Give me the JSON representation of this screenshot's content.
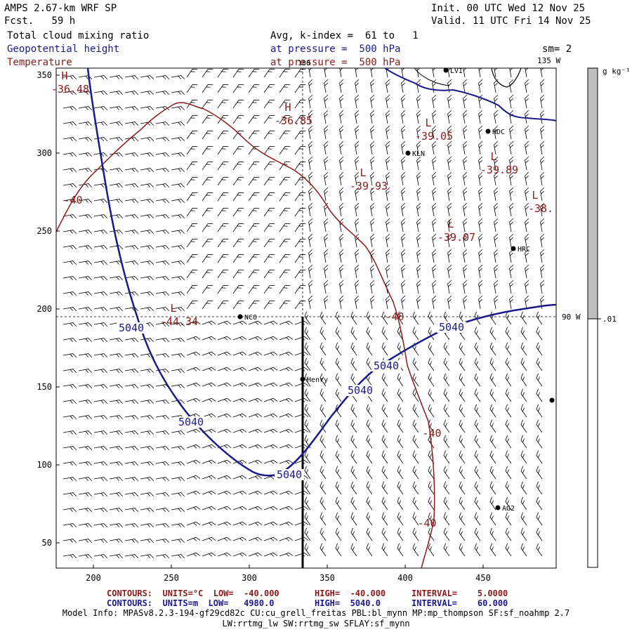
{
  "header": {
    "model": "AMPS 2.67-km WRF SP",
    "fcst_label": "Fcst.",
    "fcst_hours": "59 h",
    "init": "Init. 00 UTC Wed 12 Nov 25",
    "valid": "Valid. 11 UTC Fri 14 Nov 25",
    "field1": "Total cloud mixing ratio",
    "field2": "Geopotential height",
    "field3": "Temperature",
    "avg": "Avg, k-index =  61 to   1",
    "pressure1": "at pressure =  500 hPa",
    "pressure2": "at pressure =  500 hPa",
    "sm": "sm= 2"
  },
  "map": {
    "x_ticks": [
      "200",
      "250",
      "300",
      "350",
      "400",
      "450"
    ],
    "y_ticks": [
      "350",
      "300",
      "250",
      "200",
      "150",
      "100",
      "50"
    ],
    "meridian_180": "180",
    "meridian_135w": "135 W",
    "meridian_90w": "90 W",
    "stations": [
      {
        "name": "NCO"
      },
      {
        "name": "KLN"
      },
      {
        "name": "HDC"
      },
      {
        "name": "HRC"
      },
      {
        "name": "Henry"
      },
      {
        "name": "AG2"
      },
      {
        "name": "LVI"
      }
    ],
    "highs_lows": [
      {
        "symbol": "H",
        "value": "-36.48"
      },
      {
        "symbol": "H",
        "value": "-36.85"
      },
      {
        "symbol": "L",
        "value": "-39.05"
      },
      {
        "symbol": "L",
        "value": "-39.93"
      },
      {
        "symbol": "L",
        "value": "-39.89"
      },
      {
        "symbol": "L",
        "value": "-38."
      },
      {
        "symbol": "L",
        "value": "-39.07"
      },
      {
        "symbol": "L",
        "value": "-44.34"
      }
    ],
    "temp_labels": [
      "-40",
      "-40",
      "-40",
      "-40"
    ],
    "height_labels": [
      "5040",
      "5040",
      "5040",
      "5040",
      "5040",
      "5040"
    ]
  },
  "colorbar": {
    "units": "g kg⁻¹",
    "tick": ".01",
    "upper_color": "#bebebe",
    "lower_color": "#ffffff"
  },
  "footer": {
    "line1_left": "CONTOURS:  UNITS=°C  LOW=  -40.000",
    "line1_high": "HIGH=  -40.000",
    "line1_int": "INTERVAL=    5.0000",
    "line2_left": "CONTOURS:  UNITS=m  LOW=   4980.0",
    "line2_high": "HIGH=  5040.0",
    "line2_int": "INTERVAL=    60.000",
    "model_info1": "Model Info: MPASv8.2.3-194-gf29cd82c CU:cu_grell_freitas PBL:bl_mynn MP:mp_thompson SF:sf_noahmp 2.7",
    "model_info2": "LW:rrtmg_lw SW:rrtmg_sw SFLAY:sf_mynn"
  },
  "colors": {
    "temperature": "#8b1a1a",
    "height": "#1a1a8c",
    "text_blue": "#1a1a8c",
    "text_red": "#8b1a1a"
  }
}
